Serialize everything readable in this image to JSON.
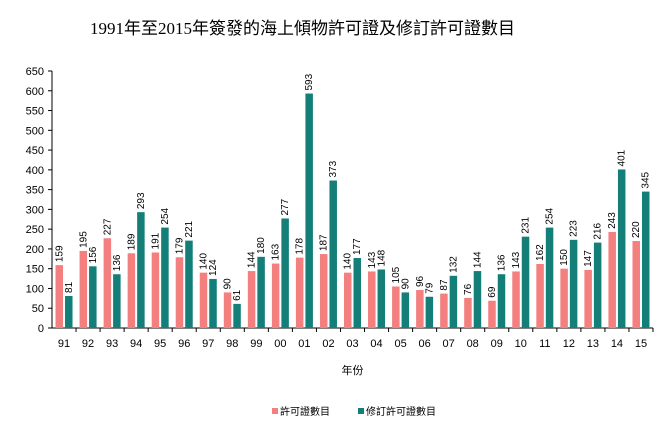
{
  "chart_data": {
    "type": "bar",
    "title": "1991年至2015年簽發的海上傾物許可證及修訂許可證數目",
    "xlabel": "年份",
    "ylabel": "",
    "ylim": [
      0,
      650
    ],
    "yticks": [
      0,
      50,
      100,
      150,
      200,
      250,
      300,
      350,
      400,
      450,
      500,
      550,
      600,
      650
    ],
    "grid": false,
    "legend": "bottom",
    "categories": [
      "91",
      "92",
      "93",
      "94",
      "95",
      "96",
      "97",
      "98",
      "99",
      "00",
      "01",
      "02",
      "03",
      "04",
      "05",
      "06",
      "07",
      "08",
      "09",
      "10",
      "11",
      "12",
      "13",
      "14",
      "15"
    ],
    "series": [
      {
        "name": "許可證數目",
        "color": "#f47f7f",
        "values": [
          159,
          195,
          227,
          189,
          191,
          179,
          140,
          90,
          144,
          163,
          178,
          187,
          140,
          143,
          105,
          96,
          87,
          76,
          69,
          143,
          162,
          150,
          147,
          243,
          220
        ]
      },
      {
        "name": "修訂許可證數目",
        "color": "#137f78",
        "values": [
          81,
          156,
          136,
          293,
          254,
          221,
          124,
          61,
          180,
          277,
          593,
          373,
          177,
          148,
          90,
          79,
          132,
          144,
          136,
          231,
          254,
          223,
          216,
          401,
          345
        ]
      }
    ]
  }
}
